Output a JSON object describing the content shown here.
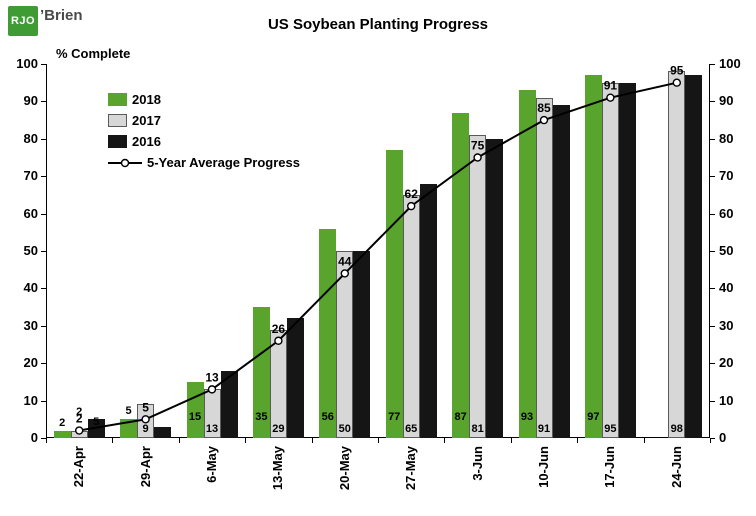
{
  "logo": {
    "mark": "RJO",
    "rest": "’Brien"
  },
  "header": {
    "title": "US Soybean Planting Progress"
  },
  "axes": {
    "y_left_label": "% Complete"
  },
  "chart_data": {
    "type": "bar",
    "title": "US Soybean Planting Progress",
    "ylabel": "% Complete",
    "ylim": [
      0,
      100
    ],
    "ytick_interval": 10,
    "gridlines": false,
    "legend_position": "top-left-inside",
    "categories": [
      "22-Apr",
      "29-Apr",
      "6-May",
      "13-May",
      "20-May",
      "27-May",
      "3-Jun",
      "10-Jun",
      "17-Jun",
      "24-Jun"
    ],
    "series": [
      {
        "name": "2018",
        "type": "bar",
        "color": "#58A42D",
        "values": [
          2,
          5,
          15,
          35,
          56,
          77,
          87,
          93,
          97,
          null
        ],
        "labels": [
          "2",
          "5",
          "15",
          "35",
          "56",
          "77",
          "87",
          "93",
          "97",
          null
        ]
      },
      {
        "name": "2017",
        "type": "bar",
        "color": "#D7D7D7",
        "border": "#5A5A5A",
        "values": [
          2,
          9,
          13,
          29,
          50,
          65,
          81,
          91,
          95,
          98
        ],
        "labels": [
          "2",
          "9",
          "13",
          "29",
          "50",
          "65",
          "81",
          "91",
          "95",
          "98"
        ]
      },
      {
        "name": "2016",
        "type": "bar",
        "color": "#151515",
        "values": [
          5,
          3,
          18,
          32,
          50,
          68,
          80,
          89,
          95,
          97
        ],
        "labels": [
          "5",
          null,
          null,
          null,
          null,
          null,
          null,
          null,
          null,
          null
        ]
      }
    ],
    "line_series": {
      "name": "5-Year Average Progress",
      "color": "#000000",
      "marker": "white-circle",
      "values": [
        2,
        5,
        13,
        26,
        44,
        62,
        75,
        85,
        91,
        95
      ],
      "labels": [
        "2",
        "5",
        "13",
        "26",
        "44",
        "62",
        "75",
        "85",
        "91",
        "95"
      ]
    }
  }
}
